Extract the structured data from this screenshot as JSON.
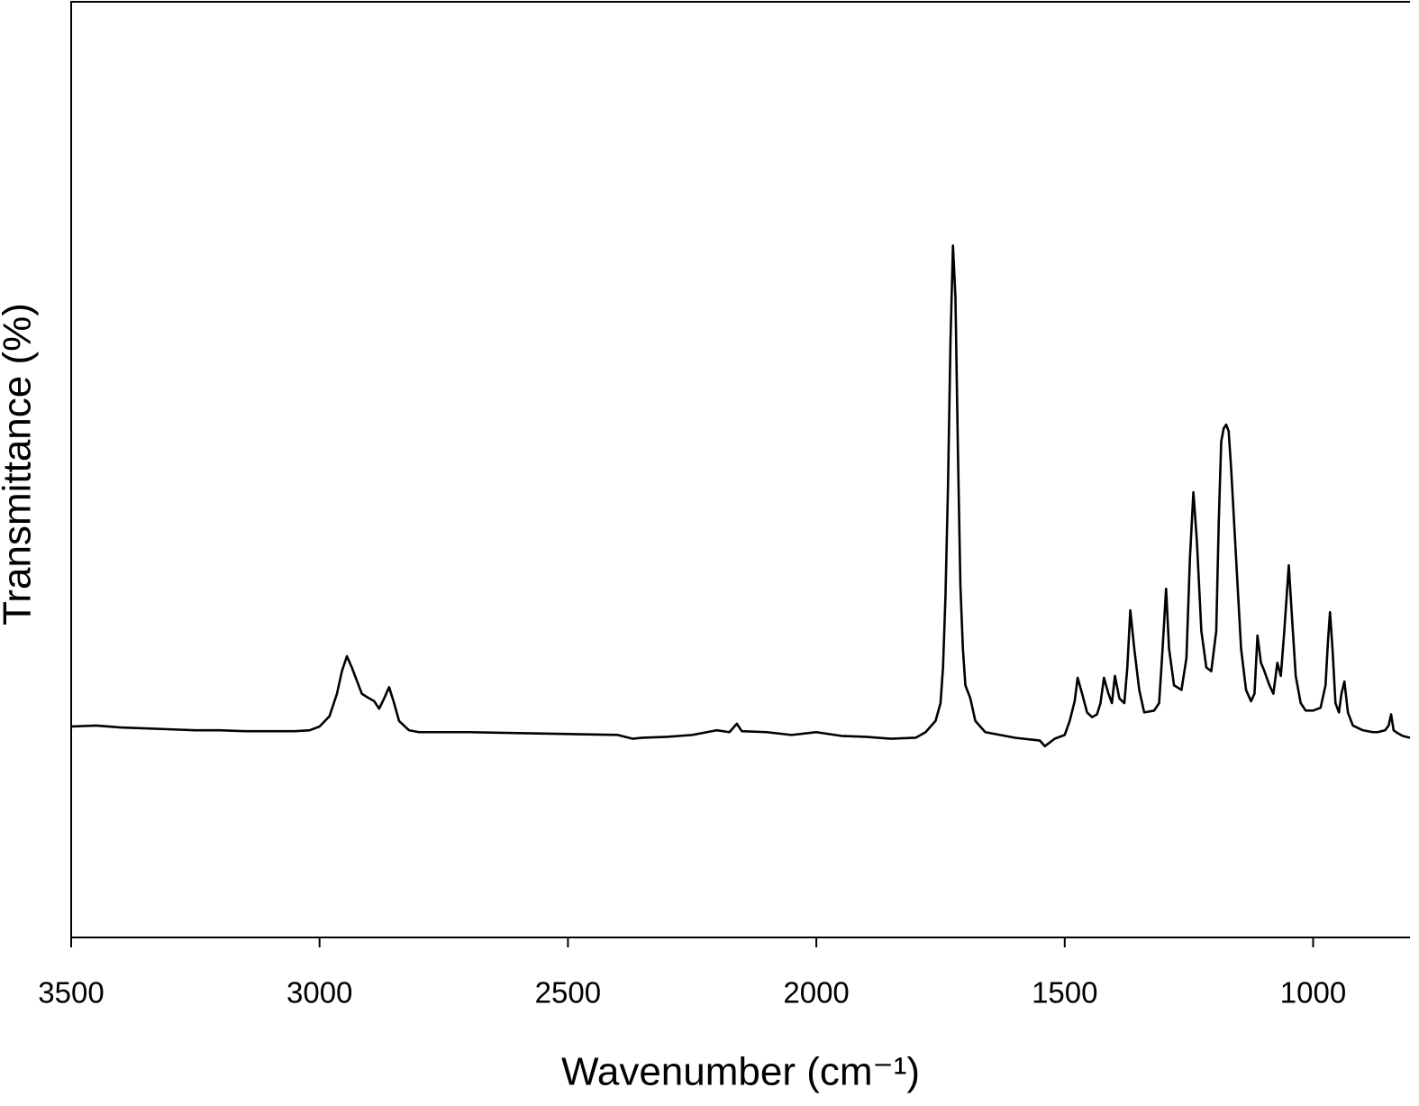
{
  "chart_data": {
    "type": "line",
    "x_label": "Wavenumber (cm⁻¹)",
    "y_label": "Transmittance (%)",
    "color": "#000000",
    "xlim": [
      3500,
      805
    ],
    "xticks": [
      3500,
      3000,
      2500,
      2000,
      1500,
      1000
    ],
    "ylim": [
      0,
      100
    ],
    "x": [
      3500,
      3450,
      3400,
      3350,
      3300,
      3250,
      3200,
      3150,
      3100,
      3050,
      3020,
      3000,
      2980,
      2965,
      2955,
      2945,
      2935,
      2925,
      2915,
      2900,
      2890,
      2880,
      2870,
      2860,
      2850,
      2840,
      2820,
      2800,
      2700,
      2600,
      2500,
      2400,
      2370,
      2350,
      2300,
      2250,
      2200,
      2175,
      2160,
      2150,
      2100,
      2050,
      2000,
      1950,
      1900,
      1850,
      1800,
      1780,
      1760,
      1750,
      1745,
      1740,
      1735,
      1730,
      1725,
      1720,
      1715,
      1710,
      1705,
      1700,
      1690,
      1680,
      1660,
      1600,
      1550,
      1540,
      1520,
      1500,
      1490,
      1480,
      1474,
      1465,
      1455,
      1445,
      1435,
      1428,
      1421,
      1412,
      1405,
      1399,
      1390,
      1380,
      1374,
      1368,
      1360,
      1350,
      1340,
      1320,
      1310,
      1303,
      1296,
      1290,
      1280,
      1265,
      1255,
      1248,
      1241,
      1234,
      1225,
      1215,
      1205,
      1195,
      1190,
      1185,
      1180,
      1175,
      1170,
      1165,
      1155,
      1145,
      1135,
      1125,
      1118,
      1112,
      1105,
      1098,
      1088,
      1080,
      1072,
      1065,
      1058,
      1049,
      1042,
      1035,
      1025,
      1015,
      1000,
      985,
      975,
      970,
      966,
      961,
      955,
      948,
      943,
      937,
      930,
      920,
      900,
      880,
      870,
      855,
      848,
      843,
      838,
      830,
      820,
      805
    ],
    "values": [
      22.5,
      22.6,
      22.4,
      22.3,
      22.2,
      22.1,
      22.1,
      22.0,
      22.0,
      22.0,
      22.1,
      22.5,
      23.6,
      26.0,
      28.4,
      30.0,
      28.8,
      27.4,
      26.0,
      25.5,
      25.2,
      24.4,
      25.5,
      26.7,
      25.0,
      23.1,
      22.1,
      21.9,
      21.9,
      21.8,
      21.7,
      21.6,
      21.2,
      21.3,
      21.4,
      21.6,
      22.1,
      21.9,
      22.8,
      22.0,
      21.9,
      21.6,
      21.9,
      21.5,
      21.4,
      21.2,
      21.3,
      21.9,
      23.1,
      25.0,
      28.8,
      36.5,
      48.1,
      63.5,
      73.8,
      68.3,
      51.9,
      37.5,
      30.8,
      26.9,
      25.5,
      23.1,
      21.9,
      21.3,
      21.0,
      20.4,
      21.2,
      21.6,
      23.1,
      25.2,
      27.7,
      26.0,
      24.0,
      23.5,
      23.8,
      25.0,
      27.7,
      26.0,
      25.0,
      27.9,
      25.5,
      25.0,
      28.8,
      34.9,
      30.8,
      26.4,
      24.0,
      24.2,
      25.0,
      30.8,
      37.2,
      30.8,
      26.9,
      26.4,
      29.8,
      40.4,
      47.5,
      42.3,
      32.7,
      28.8,
      28.4,
      32.7,
      44.2,
      52.9,
      54.3,
      54.7,
      54.0,
      50.0,
      40.4,
      30.8,
      26.4,
      25.2,
      26.0,
      32.2,
      29.3,
      28.4,
      26.9,
      26.0,
      29.3,
      27.9,
      32.7,
      39.7,
      33.7,
      27.9,
      25.0,
      24.2,
      24.2,
      24.5,
      26.9,
      31.7,
      34.7,
      30.8,
      25.0,
      24.0,
      26.0,
      27.3,
      24.0,
      22.6,
      22.1,
      21.9,
      21.9,
      22.1,
      22.6,
      23.8,
      22.1,
      21.8,
      21.5,
      21.3
    ]
  }
}
